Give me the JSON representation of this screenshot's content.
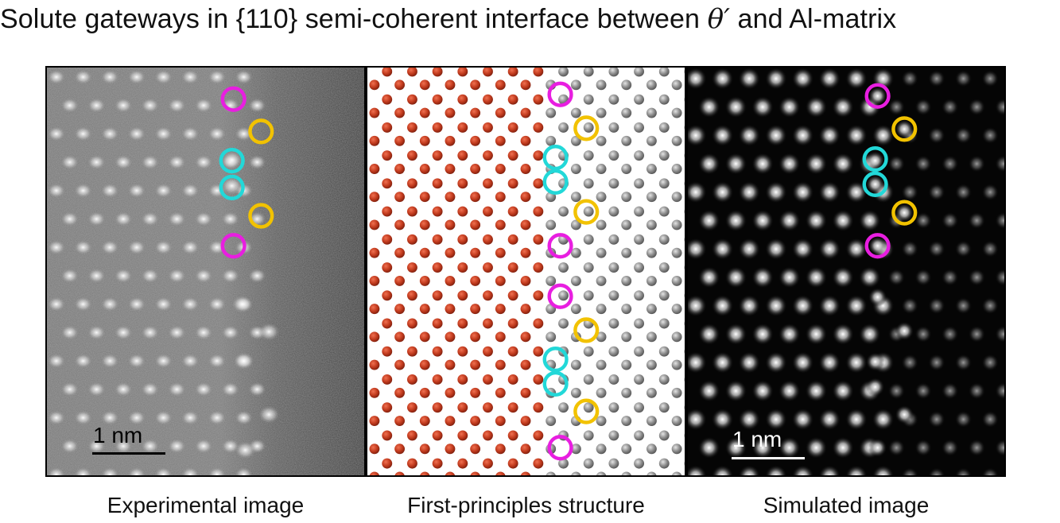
{
  "title": {
    "prefix": "Solute gateways in {110} semi-coherent interface between ",
    "symbol": "θ′",
    "suffix": " and  Al-matrix"
  },
  "panels": {
    "experimental": {
      "caption": "Experimental image",
      "scale_label": "1 nm"
    },
    "first_principles": {
      "caption": "First-principles structure"
    },
    "simulated": {
      "caption": "Simulated image",
      "scale_label": "1 nm"
    }
  },
  "colors": {
    "magenta_marker": "#e81ee0",
    "yellow_marker": "#f2c200",
    "cyan_marker": "#22d8d8",
    "cu_atom": "#c23b1e",
    "al_atom": "#8c8c8c"
  }
}
